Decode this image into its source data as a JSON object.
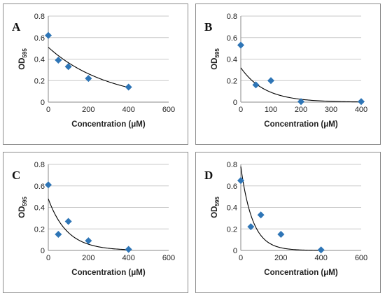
{
  "chart_data": [
    {
      "panel_label": "A",
      "type": "scatter",
      "xlabel": "Concentration (μM)",
      "ylabel": "OD",
      "ylabel_sub": "595",
      "xlim": [
        0,
        600
      ],
      "ylim": [
        0,
        0.8
      ],
      "xticks": [
        "0",
        "200",
        "400",
        "600"
      ],
      "yticks": [
        "0",
        "0.2",
        "0.4",
        "0.6",
        "0.8"
      ],
      "grid": true,
      "marker_color": "#2e75b6",
      "points": [
        [
          0,
          0.62
        ],
        [
          50,
          0.39
        ],
        [
          100,
          0.33
        ],
        [
          200,
          0.22
        ],
        [
          400,
          0.14
        ]
      ],
      "fit": {
        "type": "exponential",
        "a": 0.51,
        "b": 0.0033,
        "x_range": [
          0,
          400
        ]
      }
    },
    {
      "panel_label": "B",
      "type": "scatter",
      "xlabel": "Concentration (μM)",
      "ylabel": "OD",
      "ylabel_sub": "595",
      "xlim": [
        0,
        400
      ],
      "ylim": [
        0,
        0.8
      ],
      "xticks": [
        "0",
        "100",
        "200",
        "300",
        "400"
      ],
      "yticks": [
        "0",
        "0.2",
        "0.4",
        "0.6",
        "0.8"
      ],
      "grid": true,
      "marker_color": "#2e75b6",
      "points": [
        [
          0,
          0.53
        ],
        [
          50,
          0.16
        ],
        [
          100,
          0.2
        ],
        [
          200,
          0.005
        ],
        [
          400,
          0.005
        ]
      ],
      "fit": {
        "type": "exponential",
        "a": 0.32,
        "b": 0.0125,
        "x_range": [
          0,
          400
        ]
      }
    },
    {
      "panel_label": "C",
      "type": "scatter",
      "xlabel": "Concentration (μM)",
      "ylabel": "OD",
      "ylabel_sub": "595",
      "xlim": [
        0,
        600
      ],
      "ylim": [
        0,
        0.8
      ],
      "xticks": [
        "0",
        "200",
        "400",
        "600"
      ],
      "yticks": [
        "0",
        "0.2",
        "0.4",
        "0.6",
        "0.8"
      ],
      "grid": true,
      "marker_color": "#2e75b6",
      "points": [
        [
          0,
          0.61
        ],
        [
          50,
          0.15
        ],
        [
          100,
          0.27
        ],
        [
          200,
          0.09
        ],
        [
          400,
          0.01
        ]
      ],
      "fit": {
        "type": "exponential",
        "a": 0.48,
        "b": 0.0106,
        "x_range": [
          0,
          400
        ]
      }
    },
    {
      "panel_label": "D",
      "type": "scatter",
      "xlabel": "Concentration (μM)",
      "ylabel": "OD",
      "ylabel_sub": "595",
      "xlim": [
        0,
        600
      ],
      "ylim": [
        0,
        0.8
      ],
      "xticks": [
        "0",
        "200",
        "400",
        "600"
      ],
      "yticks": [
        "0",
        "0.2",
        "0.4",
        "0.6",
        "0.8"
      ],
      "grid": true,
      "marker_color": "#2e75b6",
      "points": [
        [
          0,
          0.65
        ],
        [
          50,
          0.22
        ],
        [
          100,
          0.33
        ],
        [
          200,
          0.15
        ],
        [
          400,
          0.005
        ]
      ],
      "fit": {
        "type": "exponential",
        "a": 0.78,
        "b": 0.0172,
        "x_range": [
          0,
          400
        ]
      }
    }
  ]
}
